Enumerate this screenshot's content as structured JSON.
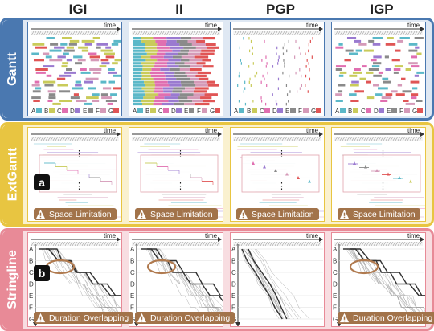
{
  "columns": [
    "IGI",
    "II",
    "PGP",
    "IGP"
  ],
  "rows": [
    {
      "label": "Gantt",
      "color": "#4a78b0",
      "bg": "#dfe8f3"
    },
    {
      "label": "ExtGantt",
      "color": "#e8c541",
      "bg": "#faf1cf"
    },
    {
      "label": "Stringline",
      "color": "#e88a97",
      "bg": "#f8dde1"
    }
  ],
  "axis": {
    "time_label": "time"
  },
  "stations": [
    "A",
    "B",
    "C",
    "D",
    "E",
    "F",
    "G"
  ],
  "station_colors": [
    "#5bb8c8",
    "#c9cb5a",
    "#e06fb0",
    "#9a7ad0",
    "#8a8a8a",
    "#d59ab8",
    "#e05555"
  ],
  "callouts": {
    "a": "a",
    "b": "b",
    "space_limitation": "Space Limitation",
    "duration_overlapping": "Duration Overlapping"
  },
  "ellipsis": "⋮"
}
